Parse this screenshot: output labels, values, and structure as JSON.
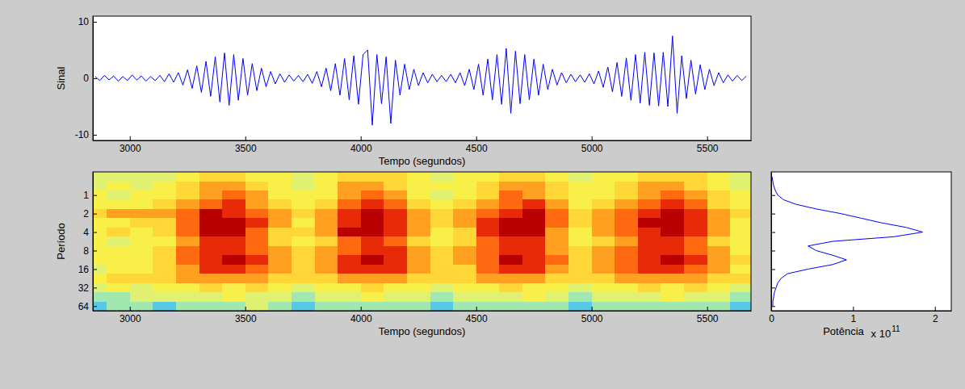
{
  "chart_data": [
    {
      "type": "line",
      "xlabel": "Tempo (segundos)",
      "ylabel": "Sinal",
      "color": "#0000ff",
      "xlim": [
        2840,
        5690
      ],
      "xticks": [
        3000,
        3500,
        4000,
        4500,
        5000,
        5500
      ],
      "ylim": [
        -11,
        11
      ],
      "yticks": [
        -10,
        0,
        10
      ],
      "x": [
        2850,
        2870,
        2890,
        2910,
        2930,
        2950,
        2970,
        2990,
        3010,
        3030,
        3050,
        3070,
        3090,
        3110,
        3130,
        3150,
        3170,
        3190,
        3210,
        3230,
        3250,
        3270,
        3290,
        3310,
        3330,
        3350,
        3370,
        3390,
        3410,
        3430,
        3450,
        3470,
        3490,
        3510,
        3530,
        3550,
        3570,
        3590,
        3610,
        3630,
        3650,
        3670,
        3690,
        3710,
        3730,
        3750,
        3770,
        3790,
        3810,
        3830,
        3850,
        3870,
        3890,
        3910,
        3930,
        3950,
        3970,
        3990,
        4010,
        4030,
        4050,
        4070,
        4090,
        4110,
        4130,
        4150,
        4170,
        4190,
        4210,
        4230,
        4250,
        4270,
        4290,
        4310,
        4330,
        4350,
        4370,
        4390,
        4410,
        4430,
        4450,
        4470,
        4490,
        4510,
        4530,
        4550,
        4570,
        4590,
        4610,
        4630,
        4650,
        4670,
        4690,
        4710,
        4730,
        4750,
        4770,
        4790,
        4810,
        4830,
        4850,
        4870,
        4890,
        4910,
        4930,
        4950,
        4970,
        4990,
        5010,
        5030,
        5050,
        5070,
        5090,
        5110,
        5130,
        5150,
        5170,
        5190,
        5210,
        5230,
        5250,
        5270,
        5290,
        5310,
        5330,
        5350,
        5370,
        5390,
        5410,
        5430,
        5450,
        5470,
        5490,
        5510,
        5530,
        5550,
        5570,
        5590,
        5610,
        5630,
        5650,
        5670
      ],
      "values": [
        0.3,
        -0.4,
        0.5,
        -0.3,
        0.4,
        -0.5,
        0.3,
        -0.4,
        0.6,
        -0.3,
        0.4,
        -0.5,
        0.3,
        -0.4,
        0.5,
        -0.6,
        0.8,
        -0.7,
        1.0,
        -1.2,
        1.5,
        -1.8,
        2.2,
        -2.5,
        3.0,
        -3.2,
        3.8,
        -4.2,
        4.5,
        -4.8,
        4.2,
        -3.9,
        3.5,
        -3.0,
        2.6,
        -2.2,
        1.8,
        -1.5,
        1.2,
        -1.0,
        0.8,
        -0.7,
        0.6,
        -0.5,
        0.5,
        -0.6,
        0.7,
        -0.9,
        1.2,
        -1.5,
        1.8,
        -2.2,
        2.6,
        -3.0,
        3.5,
        -3.8,
        4.0,
        -4.6,
        4.2,
        5.0,
        -8.3,
        4.2,
        -4.5,
        3.8,
        -8.0,
        3.2,
        -3.0,
        2.5,
        -2.0,
        1.6,
        -1.3,
        1.0,
        -0.8,
        0.7,
        -0.6,
        0.5,
        -0.6,
        0.7,
        -0.8,
        1.0,
        -1.3,
        1.6,
        -2.0,
        2.5,
        -3.0,
        3.4,
        -3.8,
        4.2,
        -4.6,
        5.3,
        -6.2,
        4.8,
        -4.5,
        4.2,
        -3.8,
        3.4,
        -3.0,
        2.5,
        -2.0,
        1.6,
        -1.2,
        1.0,
        -0.8,
        0.7,
        -0.6,
        0.6,
        -0.7,
        0.8,
        -1.0,
        1.3,
        -1.6,
        2.0,
        -2.4,
        2.8,
        -3.2,
        3.6,
        -3.9,
        4.2,
        -4.4,
        4.6,
        -4.8,
        4.5,
        -4.9,
        4.6,
        -5.0,
        7.5,
        -6.2,
        4.0,
        -3.6,
        3.2,
        -2.8,
        2.4,
        -2.0,
        1.6,
        -1.3,
        1.0,
        -0.8,
        0.6,
        -0.5,
        0.5,
        -0.4,
        0.4
      ]
    },
    {
      "type": "heatmap",
      "xlabel": "Tempo (segundos)",
      "ylabel": "Período",
      "log": "y",
      "xlim": [
        2840,
        5690
      ],
      "xticks": [
        3000,
        3500,
        4000,
        4500,
        5000,
        5500
      ],
      "ylim": [
        76,
        0.42
      ],
      "yticks": [
        1,
        2,
        4,
        8,
        16,
        32,
        64
      ],
      "x": [
        2850,
        2950,
        3050,
        3150,
        3250,
        3350,
        3450,
        3550,
        3650,
        3750,
        3850,
        3950,
        4050,
        4150,
        4250,
        4350,
        4450,
        4550,
        4650,
        4750,
        4850,
        4950,
        5050,
        5150,
        5250,
        5350,
        5450,
        5550,
        5650
      ],
      "y": [
        0.5,
        0.71,
        1,
        1.41,
        2,
        2.83,
        4,
        5.66,
        8,
        11.3,
        16,
        22.6,
        32,
        45.3,
        64
      ],
      "cells": [
        [
          4,
          4,
          4,
          4,
          5,
          6,
          6,
          5,
          5,
          4,
          5,
          6,
          6,
          6,
          5,
          4,
          5,
          5,
          6,
          6,
          5,
          4,
          5,
          5,
          6,
          6,
          6,
          5,
          4
        ],
        [
          4,
          5,
          4,
          5,
          6,
          7,
          7,
          6,
          5,
          4,
          5,
          7,
          7,
          6,
          5,
          5,
          5,
          6,
          7,
          7,
          6,
          5,
          5,
          6,
          7,
          7,
          6,
          5,
          4
        ],
        [
          5,
          4,
          5,
          5,
          6,
          7,
          8,
          7,
          5,
          5,
          5,
          7,
          8,
          7,
          5,
          4,
          5,
          6,
          8,
          7,
          6,
          5,
          5,
          6,
          7,
          8,
          7,
          6,
          5
        ],
        [
          5,
          5,
          5,
          6,
          7,
          8,
          9,
          7,
          6,
          5,
          6,
          8,
          9,
          8,
          6,
          5,
          6,
          7,
          8,
          9,
          7,
          5,
          6,
          7,
          8,
          9,
          8,
          6,
          5
        ],
        [
          6,
          7,
          7,
          7,
          8,
          10,
          9,
          8,
          7,
          6,
          7,
          9,
          10,
          9,
          7,
          6,
          7,
          8,
          9,
          10,
          8,
          6,
          7,
          8,
          9,
          10,
          9,
          7,
          6
        ],
        [
          5,
          5,
          6,
          6,
          8,
          10,
          10,
          9,
          7,
          5,
          7,
          9,
          10,
          9,
          7,
          6,
          7,
          9,
          10,
          10,
          8,
          6,
          7,
          8,
          10,
          10,
          9,
          7,
          5
        ],
        [
          5,
          6,
          5,
          6,
          8,
          10,
          10,
          8,
          6,
          6,
          7,
          10,
          10,
          9,
          7,
          5,
          6,
          9,
          10,
          10,
          7,
          5,
          7,
          8,
          9,
          10,
          9,
          7,
          5
        ],
        [
          5,
          4,
          5,
          5,
          7,
          9,
          9,
          8,
          6,
          5,
          6,
          8,
          9,
          8,
          6,
          5,
          6,
          8,
          9,
          9,
          7,
          5,
          6,
          7,
          9,
          9,
          8,
          6,
          5
        ],
        [
          5,
          5,
          5,
          6,
          8,
          9,
          9,
          8,
          7,
          6,
          7,
          8,
          9,
          9,
          7,
          6,
          7,
          8,
          9,
          9,
          7,
          6,
          7,
          8,
          9,
          9,
          8,
          7,
          5
        ],
        [
          5,
          5,
          5,
          6,
          8,
          9,
          10,
          9,
          7,
          6,
          7,
          9,
          10,
          9,
          7,
          6,
          7,
          8,
          10,
          9,
          8,
          6,
          7,
          8,
          9,
          10,
          9,
          7,
          6
        ],
        [
          4,
          5,
          5,
          6,
          7,
          9,
          9,
          8,
          7,
          6,
          7,
          9,
          9,
          9,
          7,
          6,
          6,
          8,
          9,
          9,
          7,
          6,
          7,
          8,
          9,
          9,
          8,
          7,
          5
        ],
        [
          5,
          6,
          6,
          6,
          7,
          7,
          7,
          7,
          6,
          6,
          6,
          7,
          7,
          7,
          6,
          6,
          6,
          7,
          7,
          7,
          6,
          6,
          6,
          7,
          7,
          7,
          7,
          6,
          6
        ],
        [
          4,
          5,
          4,
          5,
          5,
          6,
          5,
          6,
          5,
          4,
          5,
          5,
          6,
          5,
          5,
          4,
          5,
          5,
          6,
          5,
          5,
          4,
          5,
          5,
          6,
          5,
          6,
          5,
          4
        ],
        [
          3,
          3,
          4,
          4,
          4,
          4,
          5,
          4,
          4,
          3,
          4,
          4,
          5,
          4,
          4,
          3,
          4,
          4,
          4,
          5,
          4,
          3,
          4,
          4,
          4,
          5,
          4,
          4,
          3
        ],
        [
          2,
          3,
          3,
          2,
          3,
          3,
          3,
          4,
          3,
          2,
          3,
          3,
          3,
          3,
          3,
          2,
          3,
          3,
          3,
          3,
          3,
          2,
          3,
          3,
          3,
          3,
          3,
          3,
          2
        ]
      ]
    },
    {
      "type": "line",
      "orientation": "horizontal",
      "xlabel": "Potência",
      "x_multiplier": {
        "text": "x 10",
        "exponent": "11"
      },
      "color": "#0000ff",
      "log": "y",
      "tick_labels": "x",
      "xlim": [
        0,
        2.2
      ],
      "xticks": [
        0,
        1,
        2
      ],
      "ylim": [
        76,
        0.42
      ],
      "yticks": [
        1,
        2,
        4,
        8,
        16,
        32,
        64
      ],
      "y": [
        0.5,
        0.6,
        0.7,
        0.84,
        1,
        1.19,
        1.41,
        1.68,
        2,
        2.38,
        2.83,
        3.36,
        4,
        4.76,
        5.66,
        6.73,
        8,
        9.51,
        11.3,
        13.5,
        16,
        19,
        22.6,
        26.9,
        32,
        38,
        45.3,
        53.8,
        64
      ],
      "values": [
        0.01,
        0.02,
        0.03,
        0.05,
        0.08,
        0.15,
        0.3,
        0.55,
        0.85,
        1.1,
        1.35,
        1.65,
        1.85,
        1.5,
        0.75,
        0.45,
        0.55,
        0.75,
        0.92,
        0.75,
        0.45,
        0.2,
        0.12,
        0.08,
        0.06,
        0.04,
        0.03,
        0.02,
        0.02
      ]
    }
  ]
}
